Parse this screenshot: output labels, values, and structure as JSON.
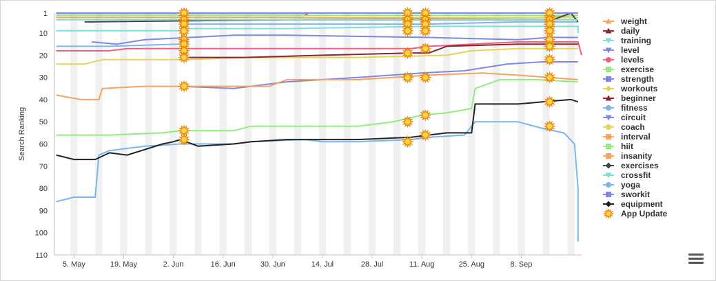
{
  "chart_data": {
    "type": "line",
    "title": "",
    "xlabel": "",
    "ylabel": "Search Ranking",
    "y_reversed": true,
    "ylim": [
      1,
      110
    ],
    "y_ticks": [
      1,
      10,
      20,
      30,
      40,
      50,
      60,
      70,
      80,
      90,
      100,
      110
    ],
    "x_range_days": [
      0,
      123
    ],
    "x_ticks": [
      {
        "label": "5. May",
        "day": 0
      },
      {
        "label": "19. May",
        "day": 14
      },
      {
        "label": "2. Jun",
        "day": 28
      },
      {
        "label": "16. Jun",
        "day": 42
      },
      {
        "label": "30. Jun",
        "day": 56
      },
      {
        "label": "14. Jul",
        "day": 70
      },
      {
        "label": "28. Jul",
        "day": 84
      },
      {
        "label": "11. Aug",
        "day": 98
      },
      {
        "label": "25. Aug",
        "day": 112
      },
      {
        "label": "8. Sep",
        "day": 126
      }
    ],
    "grid": "weekend-bands",
    "legend_position": "right",
    "series": [
      {
        "name": "weight",
        "color": "#f7a35c",
        "marker": "triangle",
        "points": [
          [
            -5,
            3
          ],
          [
            35,
            3
          ],
          [
            85,
            3
          ],
          [
            131,
            3
          ],
          [
            142,
            2
          ]
        ]
      },
      {
        "name": "daily",
        "color": "#8b2530",
        "marker": "triangle",
        "points": [
          [
            -5,
            2
          ],
          [
            65,
            2
          ],
          [
            66,
            1
          ],
          [
            100,
            1
          ],
          [
            142,
            1
          ]
        ]
      },
      {
        "name": "training",
        "color": "#7cdfd8",
        "marker": "triangle-down",
        "points": [
          [
            -5,
            9
          ],
          [
            30,
            9
          ],
          [
            31,
            8
          ],
          [
            60,
            8
          ],
          [
            100,
            7
          ],
          [
            142,
            7
          ],
          [
            142,
            10
          ]
        ]
      },
      {
        "name": "level",
        "color": "#8085e9",
        "marker": "triangle-down",
        "points": [
          [
            5,
            14
          ],
          [
            12,
            15
          ],
          [
            20,
            13
          ],
          [
            45,
            11
          ],
          [
            60,
            11
          ],
          [
            100,
            12
          ],
          [
            125,
            13
          ],
          [
            134,
            12
          ],
          [
            142,
            12
          ]
        ]
      },
      {
        "name": "levels",
        "color": "#f15c80",
        "marker": "circle",
        "points": [
          [
            -5,
            18
          ],
          [
            10,
            18
          ],
          [
            15,
            17
          ],
          [
            35,
            17
          ],
          [
            60,
            17
          ],
          [
            95,
            17
          ],
          [
            100,
            16
          ],
          [
            125,
            14
          ],
          [
            142,
            14
          ],
          [
            143,
            20
          ]
        ]
      },
      {
        "name": "exercise",
        "color": "#90ed7d",
        "marker": "square",
        "points": [
          [
            -5,
            2
          ],
          [
            60,
            2
          ],
          [
            100,
            2
          ],
          [
            142,
            2
          ]
        ]
      },
      {
        "name": "strength",
        "color": "#8085e9",
        "marker": "square",
        "points": [
          [
            -5,
            3
          ],
          [
            60,
            3
          ],
          [
            100,
            3
          ],
          [
            142,
            3
          ]
        ]
      },
      {
        "name": "workouts",
        "color": "#e4d354",
        "marker": "diamond",
        "points": [
          [
            -5,
            24
          ],
          [
            3,
            24
          ],
          [
            8,
            22
          ],
          [
            30,
            22
          ],
          [
            50,
            21
          ],
          [
            80,
            21
          ],
          [
            105,
            20
          ],
          [
            112,
            18
          ],
          [
            125,
            17
          ],
          [
            142,
            17
          ]
        ]
      },
      {
        "name": "beginner",
        "color": "#8b2530",
        "marker": "triangle",
        "points": [
          [
            30,
            21
          ],
          [
            48,
            21
          ],
          [
            70,
            20
          ],
          [
            95,
            19
          ],
          [
            100,
            19
          ],
          [
            105,
            16
          ],
          [
            125,
            15
          ],
          [
            142,
            15
          ]
        ]
      },
      {
        "name": "fitness",
        "color": "#7cb5ec",
        "marker": "circle",
        "points": [
          [
            -5,
            16
          ],
          [
            10,
            16
          ],
          [
            30,
            15
          ],
          [
            31,
            6
          ],
          [
            60,
            6
          ],
          [
            100,
            6
          ],
          [
            125,
            5
          ],
          [
            142,
            5
          ]
        ]
      },
      {
        "name": "circuit",
        "color": "#8085e9",
        "marker": "triangle-down",
        "points": [
          [
            30,
            34
          ],
          [
            45,
            35
          ],
          [
            60,
            32
          ],
          [
            80,
            30
          ],
          [
            98,
            28
          ],
          [
            110,
            27
          ],
          [
            122,
            24
          ],
          [
            132,
            23
          ],
          [
            142,
            23
          ]
        ]
      },
      {
        "name": "coach",
        "color": "#e4d354",
        "marker": "circle",
        "points": [
          [
            -5,
            3
          ],
          [
            60,
            3
          ],
          [
            100,
            3
          ],
          [
            142,
            3
          ]
        ]
      },
      {
        "name": "interval",
        "color": "#f7a35c",
        "marker": "square",
        "points": [
          [
            -5,
            38
          ],
          [
            2,
            40
          ],
          [
            7,
            40
          ],
          [
            8,
            35
          ],
          [
            20,
            34
          ],
          [
            30,
            34
          ],
          [
            55,
            34
          ],
          [
            60,
            31
          ],
          [
            80,
            31
          ],
          [
            100,
            29
          ],
          [
            115,
            28
          ],
          [
            125,
            29
          ],
          [
            142,
            31
          ]
        ]
      },
      {
        "name": "hiit",
        "color": "#90ed7d",
        "marker": "square",
        "points": [
          [
            -5,
            56
          ],
          [
            10,
            56
          ],
          [
            25,
            55
          ],
          [
            30,
            54
          ],
          [
            45,
            54
          ],
          [
            50,
            52
          ],
          [
            80,
            52
          ],
          [
            90,
            50
          ],
          [
            98,
            47
          ],
          [
            105,
            46
          ],
          [
            112,
            44
          ],
          [
            113,
            35
          ],
          [
            120,
            31
          ],
          [
            130,
            31
          ],
          [
            142,
            32
          ]
        ]
      },
      {
        "name": "insanity",
        "color": "#f7a35c",
        "marker": "square",
        "points": [
          [
            -5,
            3
          ],
          [
            60,
            3
          ],
          [
            142,
            4
          ]
        ]
      },
      {
        "name": "exercises",
        "color": "#434348",
        "marker": "diamond",
        "points": [
          [
            3,
            5
          ],
          [
            60,
            4
          ],
          [
            100,
            4
          ],
          [
            135,
            4
          ],
          [
            140,
            1
          ],
          [
            142,
            5
          ]
        ]
      },
      {
        "name": "crossfit",
        "color": "#7cdfd8",
        "marker": "triangle-down",
        "points": [
          [
            -5,
            4
          ],
          [
            60,
            4
          ],
          [
            142,
            4
          ]
        ]
      },
      {
        "name": "yoga",
        "color": "#7cb5ec",
        "marker": "circle",
        "points": [
          [
            -5,
            86
          ],
          [
            0,
            84
          ],
          [
            6,
            84
          ],
          [
            7,
            65
          ],
          [
            10,
            63
          ],
          [
            20,
            61
          ],
          [
            30,
            60
          ],
          [
            35,
            60
          ],
          [
            45,
            60
          ],
          [
            50,
            59
          ],
          [
            65,
            58
          ],
          [
            70,
            59
          ],
          [
            80,
            59
          ],
          [
            95,
            58
          ],
          [
            100,
            57
          ],
          [
            110,
            56
          ],
          [
            113,
            50
          ],
          [
            125,
            50
          ],
          [
            132,
            53
          ],
          [
            138,
            55
          ],
          [
            141,
            60
          ],
          [
            142,
            80
          ],
          [
            142,
            104
          ]
        ]
      },
      {
        "name": "sworkit",
        "color": "#8085e9",
        "marker": "square",
        "points": [
          [
            -5,
            1
          ],
          [
            142,
            1
          ]
        ]
      },
      {
        "name": "equipment",
        "color": "#222222",
        "marker": "diamond",
        "points": [
          [
            -5,
            65
          ],
          [
            0,
            67
          ],
          [
            6,
            67
          ],
          [
            10,
            64
          ],
          [
            15,
            65
          ],
          [
            25,
            60
          ],
          [
            28,
            59
          ],
          [
            30,
            58
          ],
          [
            35,
            61
          ],
          [
            45,
            60
          ],
          [
            50,
            59
          ],
          [
            60,
            58
          ],
          [
            80,
            58
          ],
          [
            95,
            57
          ],
          [
            105,
            55
          ],
          [
            112,
            55
          ],
          [
            113,
            42
          ],
          [
            125,
            42
          ],
          [
            132,
            41
          ],
          [
            140,
            40
          ],
          [
            142,
            41
          ]
        ]
      }
    ],
    "app_updates": [
      {
        "day": 31,
        "y": [
          1,
          4,
          6,
          9,
          13,
          15,
          18,
          21,
          34,
          54,
          58
        ]
      },
      {
        "day": 94,
        "y": [
          1,
          4,
          6,
          9,
          19,
          30,
          50,
          59
        ]
      },
      {
        "day": 99,
        "y": [
          1,
          4,
          6,
          9,
          17,
          30,
          47,
          56
        ]
      },
      {
        "day": 134,
        "y": [
          1,
          4,
          6,
          9,
          13,
          16,
          22,
          30,
          41,
          52
        ]
      }
    ],
    "app_update_label": "App Update"
  }
}
